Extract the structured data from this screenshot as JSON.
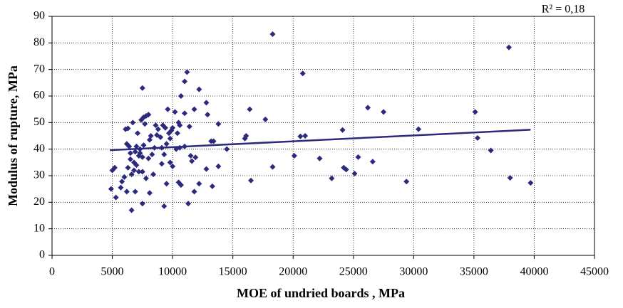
{
  "chart_data": {
    "type": "scatter",
    "x_label": "MOE of undried boards , MPa",
    "y_label": "Modulus of rupture, MPa",
    "annotation": "R² = 0,18",
    "color": "#2b2a7c",
    "grid": true,
    "xlim": [
      0,
      45000
    ],
    "xticks": [
      0,
      5000,
      10000,
      15000,
      20000,
      25000,
      30000,
      35000,
      40000,
      45000
    ],
    "ylim": [
      0,
      90
    ],
    "yticks": [
      0,
      10,
      20,
      30,
      40,
      50,
      60,
      70,
      80,
      90
    ],
    "x": [
      18300,
      20800,
      37900,
      16400,
      26200,
      27500,
      35100,
      17700,
      16100,
      16000,
      20600,
      21000,
      24100,
      30400,
      35300,
      36400,
      14500,
      20100,
      22200,
      25400,
      26600,
      18300,
      24200,
      24400,
      25100,
      23200,
      29400,
      38000,
      39700,
      16500,
      13800,
      13400,
      13200,
      12800,
      13300,
      12200,
      11900,
      11500,
      11600,
      11000,
      11200,
      11000,
      10700,
      12200,
      12800,
      11800,
      12900,
      13800,
      11400,
      10500,
      10600,
      10400,
      10200,
      10300,
      10600,
      11000,
      10500,
      10700,
      11300,
      11800,
      9300,
      9500,
      8100,
      7500,
      6600,
      6200,
      6900,
      5700,
      4900,
      5300,
      5000,
      5200,
      5800,
      6000,
      6300,
      6600,
      6800,
      7200,
      6500,
      7000,
      7500,
      7800,
      8400,
      6400,
      6200,
      6500,
      6900,
      7300,
      6100,
      6300,
      6700,
      7100,
      7500,
      7400,
      7600,
      7800,
      8000,
      7700,
      8200,
      8600,
      8800,
      8500,
      8300,
      8100,
      9000,
      9200,
      9400,
      9600,
      9700,
      9800,
      9500,
      9900,
      10000,
      9300,
      9100,
      9800,
      10000,
      7300,
      7500,
      8000,
      7000,
      6800,
      7200,
      7600,
      8700,
      9100
    ],
    "values": [
      83.3,
      68.5,
      78.3,
      55,
      55.6,
      54,
      54,
      51.2,
      45,
      44,
      44.8,
      45,
      47.2,
      47.5,
      44.2,
      39.5,
      40,
      37.5,
      36.5,
      37,
      35.3,
      33.3,
      33,
      32.3,
      30.8,
      29,
      27.8,
      29.2,
      27.3,
      28.2,
      33.5,
      43,
      43,
      32.5,
      26,
      27,
      36.9,
      37.5,
      35.5,
      53.5,
      69,
      65.5,
      60,
      62.5,
      57.5,
      55,
      53,
      49.5,
      48.5,
      50,
      49,
      46,
      54,
      40,
      40.5,
      41,
      27.5,
      26.5,
      19.5,
      24,
      18.5,
      27,
      23.5,
      19.5,
      17,
      24,
      24,
      25.5,
      25,
      21.8,
      32,
      33,
      27.8,
      29.5,
      33,
      30.5,
      35,
      37.5,
      36.2,
      34,
      31.5,
      29,
      30.5,
      41,
      42,
      38.5,
      39,
      40,
      47.5,
      47.8,
      50,
      46,
      63,
      51,
      52,
      52.5,
      53,
      49.5,
      45,
      49,
      47.5,
      40.5,
      38,
      43.5,
      44.5,
      49,
      48,
      55,
      46,
      44,
      42,
      47,
      48,
      38,
      34.5,
      35,
      33.5,
      38.5,
      37,
      36.5,
      41,
      32,
      31.5,
      41.5,
      45.3,
      40.5
    ],
    "trendline": {
      "x": [
        4800,
        39700
      ],
      "values": [
        39.6,
        47.3
      ]
    }
  }
}
